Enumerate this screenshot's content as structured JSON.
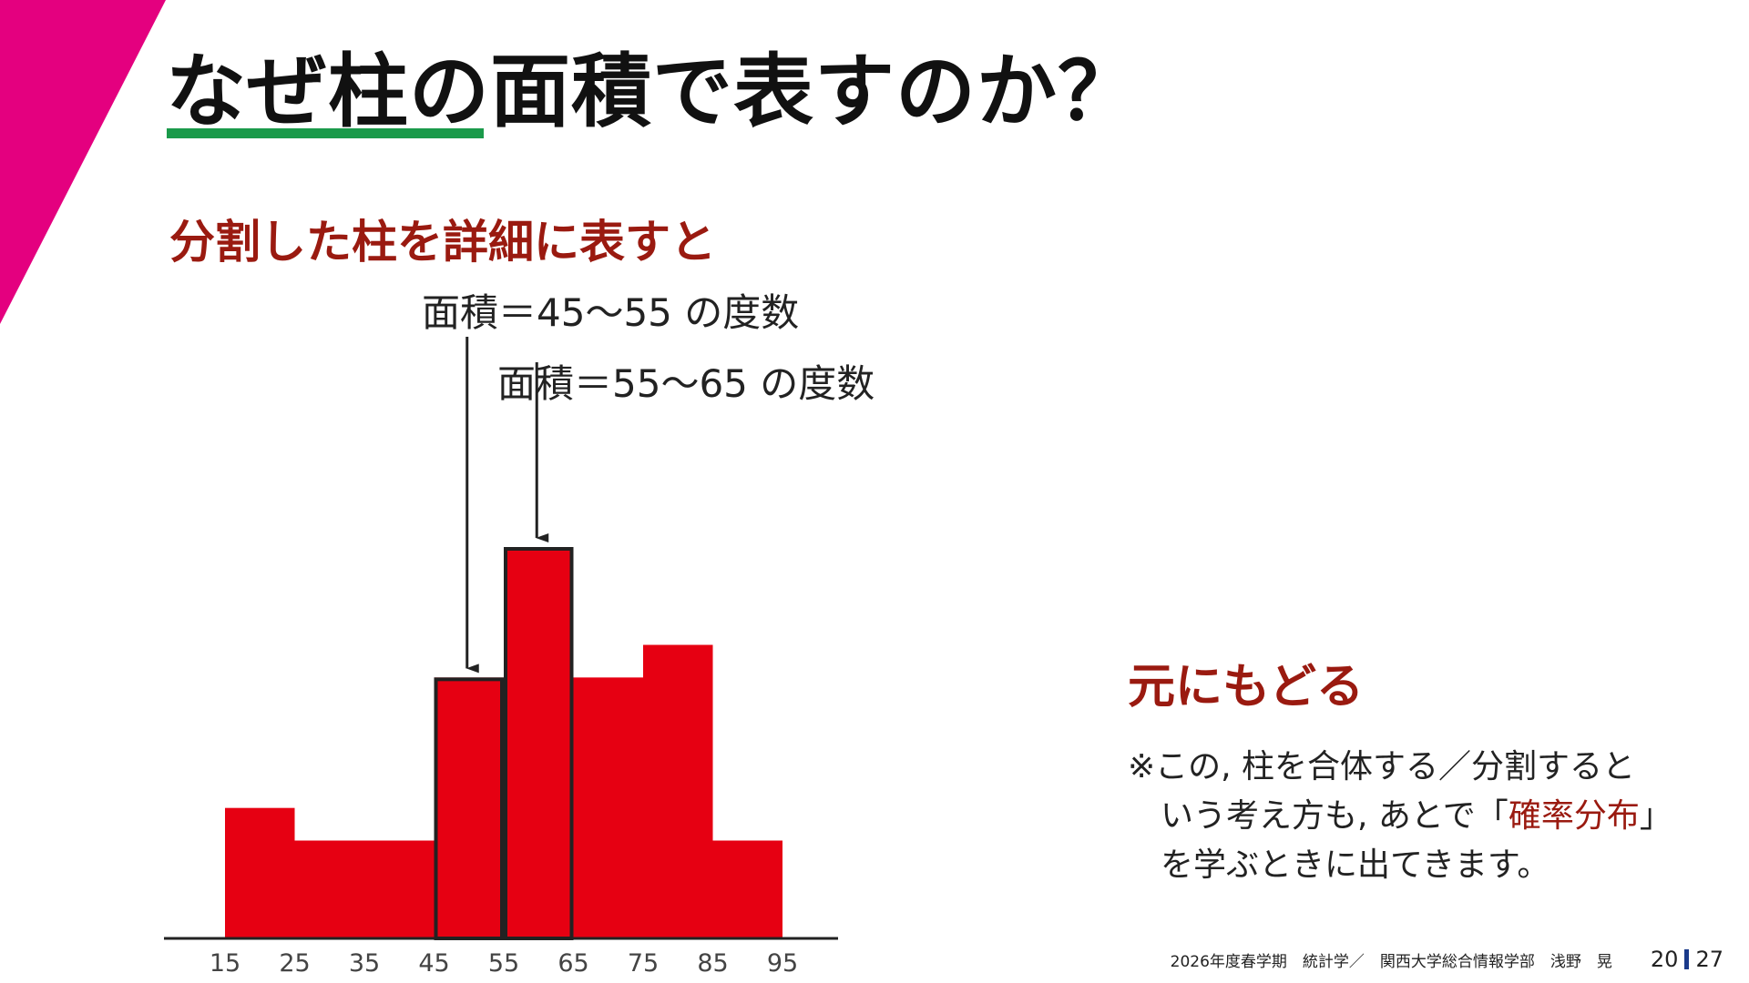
{
  "theme": {
    "accent": "#e4007f",
    "title_rule": "#1a9a4a",
    "bar": "#e60012",
    "highlight_text": "#9a1a10"
  },
  "slide": {
    "title": "なぜ柱の面積で表すのか？",
    "subtitle": "分割した柱を詳細に表すと",
    "annotations": [
      "面積＝45～55 の度数",
      "面積＝55～65 の度数"
    ],
    "conclusion": "元にもどる",
    "note": {
      "line1": "※この, 柱を合体する／分割すると",
      "line2_pre": "いう考え方も, あとで「",
      "line2_highlight": "確率分布",
      "line2_post": "」",
      "line3": "を学ぶときに出てきます。"
    }
  },
  "chart_data": {
    "type": "bar",
    "x_ticks": [
      "15",
      "25",
      "35",
      "45",
      "55",
      "65",
      "75",
      "85",
      "95"
    ],
    "bins": [
      {
        "from": 15,
        "to": 25,
        "height": 4.0,
        "outlined": false
      },
      {
        "from": 25,
        "to": 45,
        "height": 3.0,
        "outlined": false
      },
      {
        "from": 45,
        "to": 55,
        "height": 8.0,
        "outlined": true
      },
      {
        "from": 55,
        "to": 65,
        "height": 12.0,
        "outlined": true
      },
      {
        "from": 65,
        "to": 75,
        "height": 8.0,
        "outlined": false
      },
      {
        "from": 75,
        "to": 85,
        "height": 9.0,
        "outlined": false
      },
      {
        "from": 85,
        "to": 95,
        "height": 3.0,
        "outlined": false
      }
    ],
    "xlim": [
      10,
      105
    ],
    "ylim": [
      0,
      12
    ],
    "arrows": [
      {
        "target_from": 45,
        "target_to": 55
      },
      {
        "target_from": 55,
        "target_to": 65
      }
    ],
    "grid": false
  },
  "footer": {
    "course": "2026年度春学期　統計学／　関西大学総合情報学部　浅野　晃",
    "page_current": "20",
    "page_total": "27"
  }
}
